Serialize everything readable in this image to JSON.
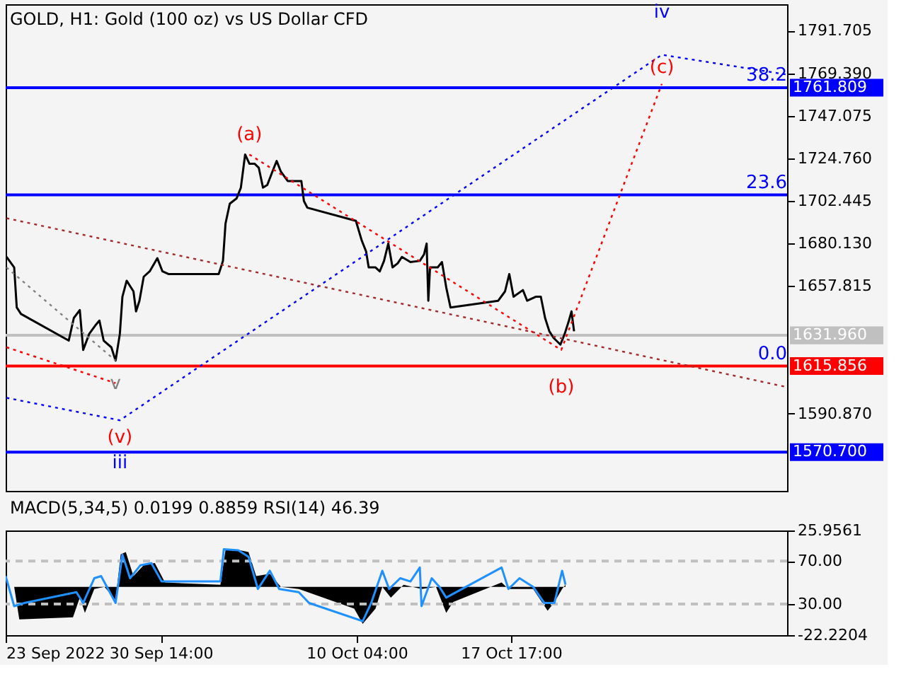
{
  "chart_data": [
    {
      "type": "line",
      "title": "GOLD, H1:  Gold (100 oz) vs US Dollar CFD",
      "xlim": [
        "2022-09-23T00:00",
        "2022-10-31T05:00"
      ],
      "ylim": [
        1550.4,
        1805.6
      ],
      "yticks": [
        {
          "value": 1590.87,
          "label": "1590.870"
        },
        {
          "value": 1657.815,
          "label": "1657.815"
        },
        {
          "value": 1680.13,
          "label": "1680.130"
        },
        {
          "value": 1702.445,
          "label": "1702.445"
        },
        {
          "value": 1724.76,
          "label": "1724.760"
        },
        {
          "value": 1747.075,
          "label": "1747.075"
        },
        {
          "value": 1769.39,
          "label": "1769.390"
        },
        {
          "value": 1791.705,
          "label": "1791.705"
        }
      ],
      "tick_labels": "y",
      "grid": false,
      "series": [
        {
          "color": "#000000",
          "line_style": "solid",
          "x": [
            "2022-09-23T01:00",
            "2022-09-23T10:00",
            "2022-09-23T13:00",
            "2022-09-23T18:00",
            "2022-09-26T02:00",
            "2022-09-26T08:00",
            "2022-09-26T15:00",
            "2022-09-26T19:00",
            "2022-09-27T02:00",
            "2022-09-27T10:00",
            "2022-09-27T14:00",
            "2022-09-27T19:00",
            "2022-09-28T04:00",
            "2022-09-28T09:00",
            "2022-09-28T14:00",
            "2022-09-28T17:00",
            "2022-09-28T22:00",
            "2022-09-29T06:00",
            "2022-09-29T09:00",
            "2022-09-29T13:00",
            "2022-09-29T18:00",
            "2022-09-30T01:00",
            "2022-09-30T10:00",
            "2022-09-30T16:00",
            "2022-09-30T23:00",
            "2022-10-03T10:00",
            "2022-10-03T15:00",
            "2022-10-03T18:00",
            "2022-10-03T23:00",
            "2022-10-04T07:00",
            "2022-10-04T12:00",
            "2022-10-04T17:00",
            "2022-10-04T22:00",
            "2022-10-05T04:00",
            "2022-10-05T09:00",
            "2022-10-05T14:00",
            "2022-10-05T19:00",
            "2022-10-06T01:00",
            "2022-10-06T06:00",
            "2022-10-06T11:00",
            "2022-10-06T19:00",
            "2022-10-07T03:00",
            "2022-10-07T11:00",
            "2022-10-07T14:00",
            "2022-10-07T18:00",
            "2022-10-10T03:00",
            "2022-10-10T10:00",
            "2022-10-10T15:00",
            "2022-10-10T18:00",
            "2022-10-11T02:00",
            "2022-10-11T07:00",
            "2022-10-11T12:00",
            "2022-10-11T17:00",
            "2022-10-11T22:00",
            "2022-10-12T04:00",
            "2022-10-12T09:00",
            "2022-10-12T19:00",
            "2022-10-13T06:00",
            "2022-10-13T11:00",
            "2022-10-13T14:00",
            "2022-10-13T16:00",
            "2022-10-13T18:00",
            "2022-10-14T03:00",
            "2022-10-14T08:00",
            "2022-10-14T13:00",
            "2022-10-14T18:00",
            "2022-10-17T02:00",
            "2022-10-17T10:00",
            "2022-10-17T15:00",
            "2022-10-17T20:00",
            "2022-10-18T07:00",
            "2022-10-18T12:00",
            "2022-10-18T22:00",
            "2022-10-19T04:00",
            "2022-10-19T09:00",
            "2022-10-19T14:00",
            "2022-10-19T19:00",
            "2022-10-20T03:00",
            "2022-10-20T08:00",
            "2022-10-20T13:00",
            "2022-10-20T16:00",
            "2022-10-20T19:00"
          ],
          "values": [
            1673.1,
            1667.6,
            1646.6,
            1643.2,
            1629.2,
            1641.1,
            1645.2,
            1624.3,
            1632.7,
            1637.6,
            1639.7,
            1629.2,
            1625.7,
            1618.7,
            1632.7,
            1652.2,
            1660.6,
            1655.0,
            1644.5,
            1650.1,
            1662.7,
            1665.5,
            1672.4,
            1665.5,
            1664.1,
            1664.1,
            1671.0,
            1690.6,
            1701.0,
            1703.8,
            1709.4,
            1726.8,
            1722.0,
            1722.0,
            1719.9,
            1709.4,
            1710.8,
            1717.8,
            1723.4,
            1717.8,
            1712.9,
            1712.9,
            1712.9,
            1702.4,
            1698.9,
            1692.0,
            1681.5,
            1675.9,
            1667.6,
            1667.6,
            1665.5,
            1671.0,
            1680.1,
            1667.6,
            1669.7,
            1673.1,
            1670.4,
            1671.0,
            1674.5,
            1680.1,
            1650.1,
            1667.6,
            1667.6,
            1670.4,
            1657.1,
            1646.6,
            1650.1,
            1655.0,
            1664.1,
            1652.2,
            1655.7,
            1650.1,
            1652.2,
            1652.2,
            1641.1,
            1634.1,
            1630.6,
            1627.1,
            1632.7,
            1639.7,
            1644.5,
            1634.1
          ]
        },
        {
          "color": "#0000ff",
          "line_style": "dotted",
          "x": [
            "2022-09-23T01:00",
            "2022-09-28T14:00",
            "2022-10-25T02:00",
            "2022-10-31T05:00"
          ],
          "values": [
            1599.2,
            1587.4,
            1779.1,
            1768.7
          ]
        },
        {
          "color": "#ff0000",
          "line_style": "dotted",
          "x": [
            "2022-10-04T22:00",
            "2022-10-20T04:00",
            "2022-10-25T02:00"
          ],
          "values": [
            1726.8,
            1624.3,
            1763.8
          ]
        },
        {
          "color": "#a52a2a",
          "line_style": "dotted",
          "x": [
            "2022-09-23T01:00",
            "2022-10-31T05:00"
          ],
          "values": [
            1693.4,
            1604.8
          ]
        },
        {
          "color": "#ff0000",
          "line_style": "dotted",
          "x": [
            "2022-09-23T01:00",
            "2022-09-28T09:00"
          ],
          "values": [
            1625.7,
            1606.9
          ]
        },
        {
          "color": "#808080",
          "line_style": "dotted",
          "x": [
            "2022-09-23T01:00",
            "2022-09-28T09:00"
          ],
          "values": [
            1667.6,
            1618.7
          ]
        }
      ],
      "ref_lines": [
        {
          "axis": "y",
          "value": 1761.809,
          "label": "1761.809",
          "color": "#0000ff",
          "line_style": "solid"
        },
        {
          "axis": "y",
          "value": 1705.6,
          "color": "#0000ff",
          "line_style": "solid"
        },
        {
          "axis": "y",
          "value": 1631.96,
          "label": "1631.960",
          "color": "#c0c0c0",
          "line_style": "solid"
        },
        {
          "axis": "y",
          "value": 1615.856,
          "label": "1615.856",
          "color": "#ff0000",
          "line_style": "solid"
        },
        {
          "axis": "y",
          "value": 1570.7,
          "label": "1570.700",
          "color": "#0000ff",
          "line_style": "solid"
        }
      ],
      "annotations": [
        {
          "text": "38.2",
          "x": "2022-10-31T05:00",
          "y": 1761.809
        },
        {
          "text": "23.6",
          "x": "2022-10-31T05:00",
          "y": 1705.6
        },
        {
          "text": "0.0",
          "x": "2022-10-31T05:00",
          "y": 1615.856
        },
        {
          "text": "(a)",
          "x": "2022-10-04T22:00",
          "y": 1726.8
        },
        {
          "text": "(b)",
          "x": "2022-10-20T04:00",
          "y": 1624.3
        },
        {
          "text": "(c)",
          "x": "2022-10-25T02:00",
          "y": 1763.8
        },
        {
          "text": "iv",
          "x": "2022-10-25T02:00",
          "y": 1779.1
        },
        {
          "text": "v",
          "x": "2022-09-28T09:00",
          "y": 1606.9
        },
        {
          "text": "(v)",
          "x": "2022-09-28T14:00",
          "y": 1587.4
        },
        {
          "text": "iii",
          "x": "2022-09-28T14:00",
          "y": 1587.4
        }
      ]
    },
    {
      "type": "line",
      "title": "MACD(5,34,5) 0.0199 0.8859 RSI(14) 46.39",
      "xlim": [
        "2022-09-23T00:00",
        "2022-10-31T05:00"
      ],
      "ylim": [
        -22.2204,
        25.9561
      ],
      "yticks": [
        {
          "value": -22.2204,
          "label": "-22.2204"
        },
        {
          "value": 25.9561,
          "label": "25.9561"
        }
      ],
      "y2lim": [
        1,
        98.5
      ],
      "y2ticks": [
        {
          "value": 30,
          "label": "30.00"
        },
        {
          "value": 70,
          "label": "70.00"
        }
      ],
      "xticks": [
        {
          "value": "2022-09-23T00:00",
          "label": "23 Sep 2022"
        },
        {
          "value": "2022-09-30T14:00",
          "label": "30 Sep 14:00"
        },
        {
          "value": "2022-10-10T04:00",
          "label": "10 Oct 04:00"
        },
        {
          "value": "2022-10-17T17:00",
          "label": "17 Oct 17:00"
        }
      ],
      "grid": false,
      "series": [
        {
          "type": "area",
          "color": "#000000",
          "x": [
            "2022-09-23T00:00",
            "2022-09-23T10:00",
            "2022-09-23T16:00",
            "2022-09-26T07:00",
            "2022-09-26T15:00",
            "2022-09-26T21:00",
            "2022-09-27T08:00",
            "2022-09-27T20:00",
            "2022-09-28T09:00",
            "2022-09-28T15:00",
            "2022-09-28T21:00",
            "2022-09-29T06:00",
            "2022-09-29T18:00",
            "2022-09-30T07:00",
            "2022-09-30T19:00",
            "2022-10-03T12:00",
            "2022-10-03T18:00",
            "2022-10-04T09:00",
            "2022-10-04T21:00",
            "2022-10-05T06:00",
            "2022-10-05T22:00",
            "2022-10-06T11:00",
            "2022-10-07T08:00",
            "2022-10-10T01:00",
            "2022-10-10T11:00",
            "2022-10-11T02:00",
            "2022-10-11T10:00",
            "2022-10-11T20:00",
            "2022-10-12T11:00",
            "2022-10-13T08:00",
            "2022-10-14T01:00",
            "2022-10-14T13:00",
            "2022-10-14T21:00",
            "2022-10-17T06:00",
            "2022-10-17T14:00",
            "2022-10-18T07:00",
            "2022-10-18T19:00",
            "2022-10-19T12:00",
            "2022-10-19T20:00",
            "2022-10-20T05:00",
            "2022-10-20T09:00"
          ],
          "values": [
            0,
            0,
            -15,
            -14,
            -5,
            -12,
            -1,
            0,
            -6,
            15,
            16,
            5,
            10,
            11,
            2,
            1,
            17,
            17,
            16,
            5,
            6,
            0,
            -1,
            -10,
            -17,
            -10,
            0,
            -5,
            1,
            -1,
            0,
            -12,
            -7,
            2,
            -1,
            -1,
            -1,
            -11,
            -7,
            -1,
            1
          ]
        },
        {
          "type": "line",
          "axis": "y2",
          "color": "#1e90ff",
          "line_style": "solid",
          "x": [
            "2022-09-23T00:00",
            "2022-09-23T10:00",
            "2022-09-23T22:00",
            "2022-09-26T11:00",
            "2022-09-26T19:00",
            "2022-09-27T08:00",
            "2022-09-27T16:00",
            "2022-09-28T09:00",
            "2022-09-28T17:00",
            "2022-09-29T02:00",
            "2022-09-29T14:00",
            "2022-09-30T03:00",
            "2022-09-30T15:00",
            "2022-10-03T12:00",
            "2022-10-03T16:00",
            "2022-10-04T09:00",
            "2022-10-04T21:00",
            "2022-10-05T08:00",
            "2022-10-05T22:00",
            "2022-10-06T09:00",
            "2022-10-07T08:00",
            "2022-10-07T20:00",
            "2022-10-10T11:00",
            "2022-10-10T21:00",
            "2022-10-11T10:00",
            "2022-10-11T18:00",
            "2022-10-12T07:00",
            "2022-10-12T19:00",
            "2022-10-13T06:00",
            "2022-10-13T08:00",
            "2022-10-13T20:00",
            "2022-10-14T05:00",
            "2022-10-14T13:00",
            "2022-10-17T06:00",
            "2022-10-17T14:00",
            "2022-10-18T03:00",
            "2022-10-18T19:00",
            "2022-10-19T08:00",
            "2022-10-19T20:00",
            "2022-10-20T05:00",
            "2022-10-20T09:00"
          ],
          "values": [
            56,
            28,
            31,
            41,
            31,
            54,
            56,
            31,
            76,
            54,
            66,
            68,
            51,
            51,
            81,
            80,
            74,
            44,
            61,
            44,
            41,
            31,
            14,
            31,
            61,
            44,
            54,
            51,
            64,
            28,
            54,
            46,
            36,
            64,
            44,
            54,
            46,
            31,
            31,
            61,
            48
          ]
        }
      ],
      "ref_lines": [
        {
          "axis": "y2",
          "value": 70,
          "color": "#c0c0c0",
          "line_style": "dashed"
        },
        {
          "axis": "y2",
          "value": 30,
          "color": "#c0c0c0",
          "line_style": "dashed"
        }
      ]
    }
  ]
}
